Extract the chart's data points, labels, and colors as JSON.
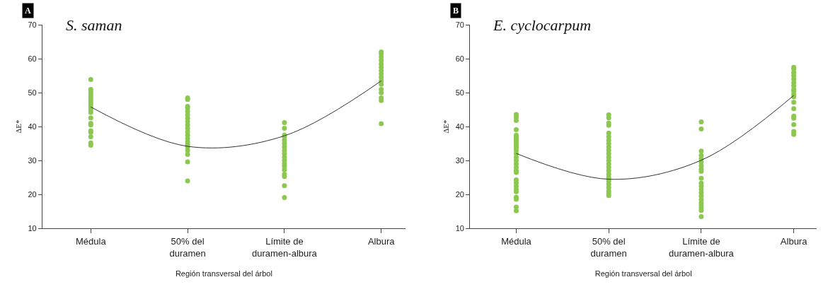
{
  "chart_data": [
    {
      "type": "scatter",
      "title": "S. saman",
      "xlabel": "Región transversal del árbol",
      "ylabel": "ΔE*",
      "annotations": [
        "A"
      ],
      "categories": [
        "Médula",
        "50% del duramen",
        "Límite de duramen-albura",
        "Albura"
      ],
      "ylim": [
        10,
        70
      ],
      "yticks": [
        10,
        20,
        30,
        40,
        50,
        60,
        70
      ],
      "series": [
        {
          "marker": "circle",
          "color": "#8cc850",
          "x": [
            "Médula",
            "Médula",
            "Médula",
            "Médula",
            "Médula",
            "Médula",
            "Médula",
            "Médula",
            "Médula",
            "Médula",
            "Médula",
            "Médula",
            "Médula",
            "Médula",
            "Médula",
            "Médula",
            "Médula",
            "Médula",
            "Médula",
            "50% del duramen",
            "50% del duramen",
            "50% del duramen",
            "50% del duramen",
            "50% del duramen",
            "50% del duramen",
            "50% del duramen",
            "50% del duramen",
            "50% del duramen",
            "50% del duramen",
            "50% del duramen",
            "50% del duramen",
            "50% del duramen",
            "50% del duramen",
            "50% del duramen",
            "50% del duramen",
            "50% del duramen",
            "50% del duramen",
            "50% del duramen",
            "50% del duramen",
            "Límite de duramen-albura",
            "Límite de duramen-albura",
            "Límite de duramen-albura",
            "Límite de duramen-albura",
            "Límite de duramen-albura",
            "Límite de duramen-albura",
            "Límite de duramen-albura",
            "Límite de duramen-albura",
            "Límite de duramen-albura",
            "Límite de duramen-albura",
            "Límite de duramen-albura",
            "Límite de duramen-albura",
            "Límite de duramen-albura",
            "Límite de duramen-albura",
            "Límite de duramen-albura",
            "Límite de duramen-albura",
            "Límite de duramen-albura",
            "Límite de duramen-albura",
            "Albura",
            "Albura",
            "Albura",
            "Albura",
            "Albura",
            "Albura",
            "Albura",
            "Albura",
            "Albura",
            "Albura",
            "Albura",
            "Albura",
            "Albura",
            "Albura",
            "Albura",
            "Albura"
          ],
          "values": [
            53.9,
            51,
            50.3,
            49.5,
            48.8,
            48,
            47.2,
            46.5,
            45.7,
            45,
            44.2,
            42.6,
            41,
            40.5,
            38.8,
            38.3,
            37,
            35.2,
            34.5,
            48.5,
            48,
            46,
            45.5,
            44.5,
            43.5,
            42.5,
            41.5,
            40.5,
            39.5,
            38.5,
            37.5,
            36.5,
            35.5,
            34.8,
            34,
            33,
            31.8,
            29.6,
            24,
            41.2,
            39.5,
            37.5,
            37,
            36,
            35,
            34,
            33,
            32,
            31,
            30,
            29,
            28.3,
            27.3,
            26,
            25.3,
            22.6,
            19.1,
            62,
            61.5,
            60.5,
            59.5,
            58.5,
            57.5,
            56.5,
            55.5,
            54.5,
            53.5,
            52.5,
            51,
            50,
            48.5,
            47.7,
            40.9
          ]
        },
        {
          "type": "line",
          "color": "#333333",
          "x": [
            "Médula",
            "50% del duramen",
            "Límite de duramen-albura",
            "Albura"
          ],
          "values": [
            45.8,
            34.2,
            37.3,
            53.5
          ]
        }
      ]
    },
    {
      "type": "scatter",
      "title": "E. cyclocarpum",
      "xlabel": "Región transversal del árbol",
      "ylabel": "ΔE*",
      "annotations": [
        "B"
      ],
      "categories": [
        "Médula",
        "50% del duramen",
        "Límite de duramen-albura",
        "Albura"
      ],
      "ylim": [
        10,
        70
      ],
      "yticks": [
        10,
        20,
        30,
        40,
        50,
        60,
        70
      ],
      "series": [
        {
          "marker": "circle",
          "color": "#8cc850",
          "x": [
            "Médula",
            "Médula",
            "Médula",
            "Médula",
            "Médula",
            "Médula",
            "Médula",
            "Médula",
            "Médula",
            "Médula",
            "Médula",
            "Médula",
            "Médula",
            "Médula",
            "Médula",
            "Médula",
            "Médula",
            "Médula",
            "Médula",
            "Médula",
            "Médula",
            "Médula",
            "Médula",
            "Médula",
            "Médula",
            "Médula",
            "Médula",
            "Médula",
            "50% del duramen",
            "50% del duramen",
            "50% del duramen",
            "50% del duramen",
            "50% del duramen",
            "50% del duramen",
            "50% del duramen",
            "50% del duramen",
            "50% del duramen",
            "50% del duramen",
            "50% del duramen",
            "50% del duramen",
            "50% del duramen",
            "50% del duramen",
            "50% del duramen",
            "50% del duramen",
            "50% del duramen",
            "50% del duramen",
            "50% del duramen",
            "50% del duramen",
            "50% del duramen",
            "50% del duramen",
            "50% del duramen",
            "50% del duramen",
            "Límite de duramen-albura",
            "Límite de duramen-albura",
            "Límite de duramen-albura",
            "Límite de duramen-albura",
            "Límite de duramen-albura",
            "Límite de duramen-albura",
            "Límite de duramen-albura",
            "Límite de duramen-albura",
            "Límite de duramen-albura",
            "Límite de duramen-albura",
            "Límite de duramen-albura",
            "Límite de duramen-albura",
            "Límite de duramen-albura",
            "Límite de duramen-albura",
            "Límite de duramen-albura",
            "Límite de duramen-albura",
            "Límite de duramen-albura",
            "Límite de duramen-albura",
            "Límite de duramen-albura",
            "Límite de duramen-albura",
            "Límite de duramen-albura",
            "Albura",
            "Albura",
            "Albura",
            "Albura",
            "Albura",
            "Albura",
            "Albura",
            "Albura",
            "Albura",
            "Albura",
            "Albura",
            "Albura",
            "Albura",
            "Albura",
            "Albura",
            "Albura",
            "Albura",
            "Albura"
          ],
          "values": [
            43.6,
            42.8,
            41.8,
            39.1,
            37.5,
            37,
            36.5,
            36,
            35.3,
            34.5,
            33.8,
            33,
            32,
            31,
            30,
            29,
            28,
            27,
            26.5,
            24.3,
            23.5,
            22.5,
            21.5,
            20.8,
            19.2,
            18.6,
            16.3,
            15.2,
            43.5,
            42.6,
            41.1,
            40.4,
            38.1,
            37,
            36,
            35,
            34,
            33,
            32,
            31,
            30,
            29,
            28,
            27,
            26,
            25,
            24,
            23,
            22,
            21,
            20.3,
            19.7,
            41.4,
            39.3,
            32.8,
            31.5,
            30.5,
            29.5,
            28.5,
            27.5,
            26.8,
            24.8,
            23.3,
            22.5,
            21.5,
            20.5,
            19.5,
            18.5,
            17.6,
            16.8,
            16,
            15.3,
            13.5,
            57.5,
            57,
            56,
            55,
            54,
            53,
            52,
            51,
            50.5,
            49.5,
            48.8,
            47.2,
            45.3,
            43.1,
            42.5,
            40.6,
            38.6,
            37.7
          ]
        },
        {
          "type": "line",
          "color": "#333333",
          "x": [
            "Médula",
            "50% del duramen",
            "Límite de duramen-albura",
            "Albura"
          ],
          "values": [
            32.1,
            24.5,
            30.1,
            49.2
          ]
        }
      ]
    }
  ]
}
